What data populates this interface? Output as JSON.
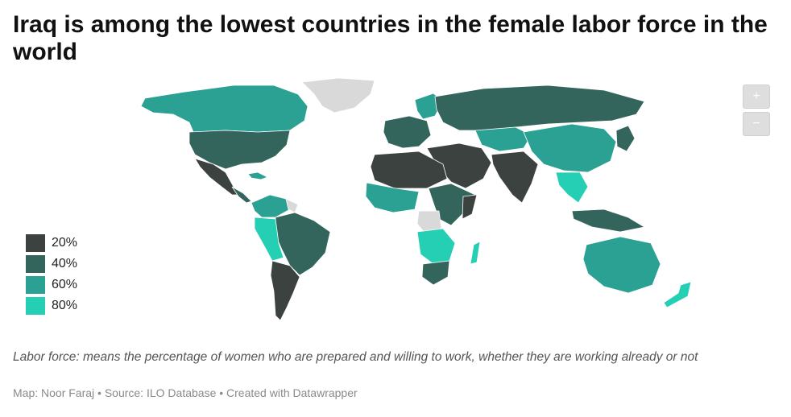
{
  "title": "Iraq is among the lowest countries in the female labor force in the world",
  "zoom": {
    "in_label": "+",
    "out_label": "−"
  },
  "legend": [
    {
      "label": "20%",
      "color": "#3b4240"
    },
    {
      "label": "40%",
      "color": "#34655d"
    },
    {
      "label": "60%",
      "color": "#2aa192"
    },
    {
      "label": "80%",
      "color": "#24cfb4"
    }
  ],
  "no_data_color": "#d9d9d9",
  "note": "Labor force: means the percentage of women who are prepared and willing to work, whether they are working already or not",
  "credit": "Map: Noor Faraj • Source: ILO Database • Created with Datawrapper"
}
